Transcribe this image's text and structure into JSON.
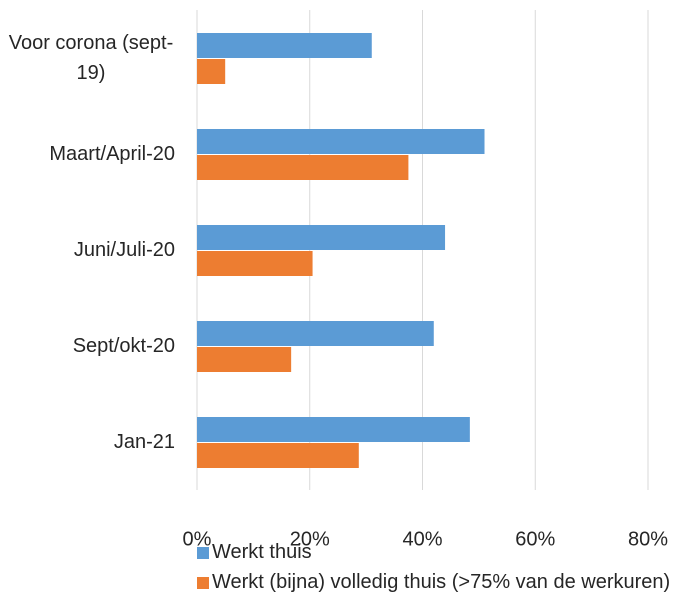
{
  "chart_data": {
    "type": "barh",
    "categories": [
      "Voor corona (sept-19)",
      "Maart/April-20",
      "Juni/Juli-20",
      "Sept/okt-20",
      "Jan-21"
    ],
    "series": [
      {
        "name": "Werkt thuis",
        "color": "#5b9bd5",
        "values": [
          31,
          51,
          44,
          42,
          48.4
        ]
      },
      {
        "name": "Werkt (bijna) volledig thuis (>75% van de werkuren)",
        "color": "#ed7d31",
        "values": [
          5,
          37.5,
          20.5,
          16.7,
          28.7
        ]
      }
    ],
    "xlim": [
      0,
      80
    ],
    "xticks": [
      {
        "value": 0,
        "label": "0%"
      },
      {
        "value": 20,
        "label": "20%"
      },
      {
        "value": 40,
        "label": "40%"
      },
      {
        "value": 60,
        "label": "60%"
      },
      {
        "value": 80,
        "label": "80%"
      }
    ],
    "grid": true,
    "legend": "bottom"
  }
}
